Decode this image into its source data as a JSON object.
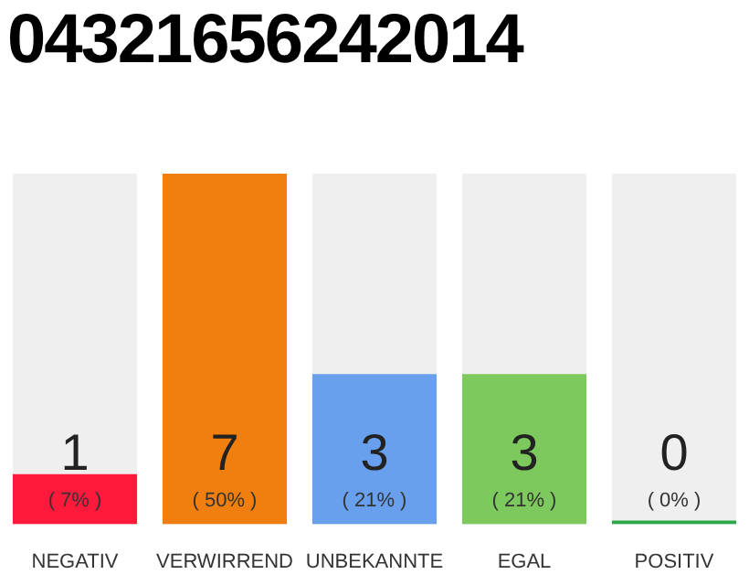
{
  "chart_data": {
    "type": "bar",
    "title": "04321656242014",
    "categories": [
      "NEGATIV",
      "VERWIRREND",
      "UNBEKANNTE",
      "EGAL",
      "POSITIV"
    ],
    "values": [
      1,
      7,
      3,
      3,
      0
    ],
    "colors": [
      "#ff1a3c",
      "#f07f0f",
      "#68a0ee",
      "#7ec95e",
      "#2aa84a"
    ],
    "ylim": [
      0,
      7
    ],
    "tick_labels": "x",
    "data_labels": true,
    "annotations": [
      "( 7% )",
      "( 50% )",
      "( 21% )",
      "( 21% )",
      "( 0% )"
    ]
  }
}
